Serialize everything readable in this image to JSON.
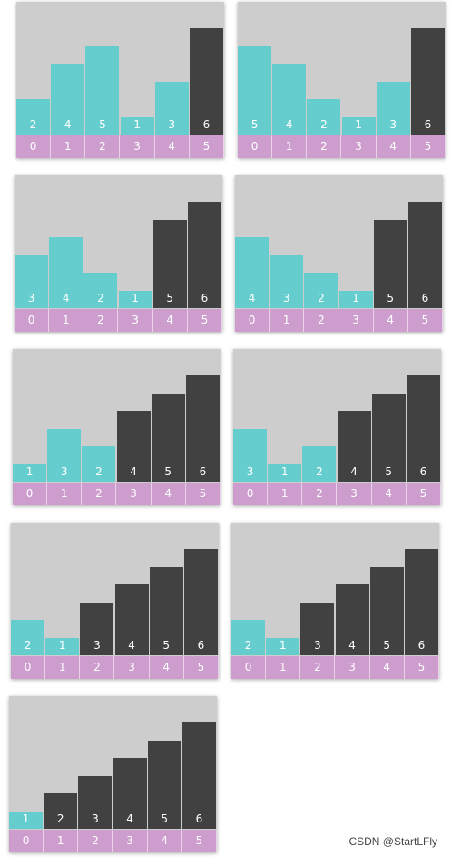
{
  "frames": [
    {
      "values": [
        2,
        4,
        5,
        1,
        3,
        6
      ],
      "sorted_from": 5
    },
    {
      "values": [
        5,
        4,
        2,
        1,
        3,
        6
      ],
      "sorted_from": 5
    },
    {
      "values": [
        3,
        4,
        2,
        1,
        5,
        6
      ],
      "sorted_from": 4
    },
    {
      "values": [
        4,
        3,
        2,
        1,
        5,
        6
      ],
      "sorted_from": 4
    },
    {
      "values": [
        1,
        3,
        2,
        4,
        5,
        6
      ],
      "sorted_from": 3
    },
    {
      "values": [
        3,
        1,
        2,
        4,
        5,
        6
      ],
      "sorted_from": 3
    },
    {
      "values": [
        2,
        1,
        3,
        4,
        5,
        6
      ],
      "sorted_from": 2
    },
    {
      "values": [
        2,
        1,
        3,
        4,
        5,
        6
      ],
      "sorted_from": 2
    },
    {
      "values": [
        1,
        2,
        3,
        4,
        5,
        6
      ],
      "sorted_from": 1
    }
  ],
  "indices": [
    "0",
    "1",
    "2",
    "3",
    "4",
    "5"
  ],
  "colors": {
    "unsorted": "#66cdcf",
    "sorted": "#414141",
    "panel_bg": "#cdcdcd",
    "index_row": "#cc9dcd"
  },
  "watermark": "CSDN @StartLFly"
}
